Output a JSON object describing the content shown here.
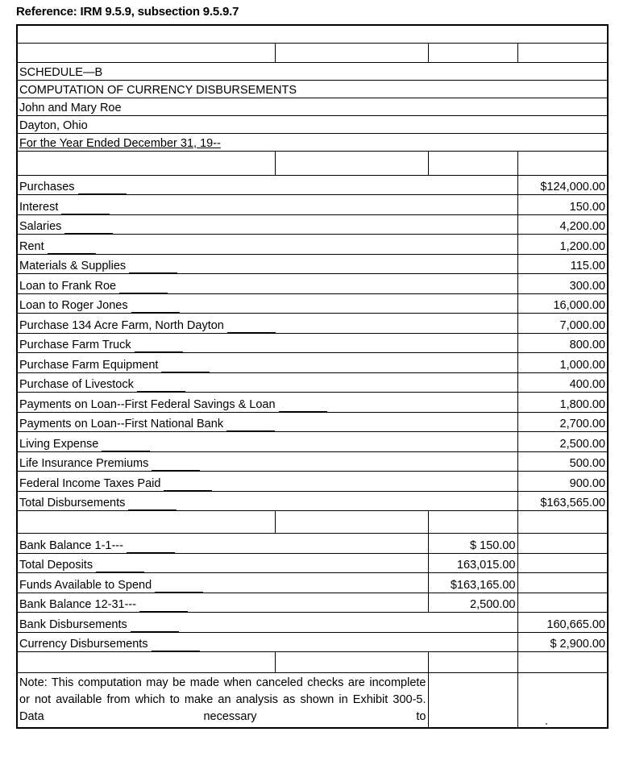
{
  "reference": "Reference:  IRM 9.5.9, subsection 9.5.9.7",
  "header": {
    "schedule": "SCHEDULE—B",
    "title": "COMPUTATION OF CURRENCY DISBURSEMENTS",
    "taxpayer": "John and Mary Roe",
    "location": "Dayton, Ohio",
    "period": "For the Year Ended December 31, 19--"
  },
  "disbursements": [
    {
      "label": "Purchases",
      "amount": "$124,000.00"
    },
    {
      "label": "Interest",
      "amount": "150.00"
    },
    {
      "label": "Salaries",
      "amount": "4,200.00"
    },
    {
      "label": "Rent",
      "amount": "1,200.00"
    },
    {
      "label": "Materials & Supplies",
      "amount": "115.00"
    },
    {
      "label": "Loan to Frank Roe",
      "amount": "300.00"
    },
    {
      "label": "Loan to Roger Jones",
      "amount": "16,000.00"
    },
    {
      "label": "Purchase 134 Acre Farm, North Dayton",
      "amount": "7,000.00"
    },
    {
      "label": "Purchase Farm Truck",
      "amount": "800.00"
    },
    {
      "label": "Purchase Farm Equipment",
      "amount": "1,000.00"
    },
    {
      "label": "Purchase of Livestock",
      "amount": "400.00"
    },
    {
      "label": "Payments on Loan--First Federal Savings & Loan",
      "amount": "1,800.00"
    },
    {
      "label": "Payments on Loan--First National Bank",
      "amount": "2,700.00"
    },
    {
      "label": "Living Expense",
      "amount": "2,500.00"
    },
    {
      "label": "Life Insurance Premiums",
      "amount": "500.00"
    },
    {
      "label": "Federal Income Taxes Paid",
      "amount": "900.00"
    },
    {
      "label": "Total Disbursements",
      "amount": "$163,565.00"
    }
  ],
  "bank": [
    {
      "label": "Bank Balance 1-1---",
      "amount": "$ 150.00"
    },
    {
      "label": "Total Deposits",
      "amount": "163,015.00"
    },
    {
      "label": "Funds Available to Spend",
      "amount": "$163,165.00"
    },
    {
      "label": "Bank Balance 12-31---",
      "amount": "2,500.00"
    }
  ],
  "results": [
    {
      "label": "Bank Disbursements",
      "amount": "160,665.00"
    },
    {
      "label": "Currency Disbursements",
      "amount": "$ 2,900.00"
    }
  ],
  "note": "Note: This computation may be made when canceled checks are incomplete or not available from which to make an analysis as shown in Exhibit 300-5. Data necessary to"
}
